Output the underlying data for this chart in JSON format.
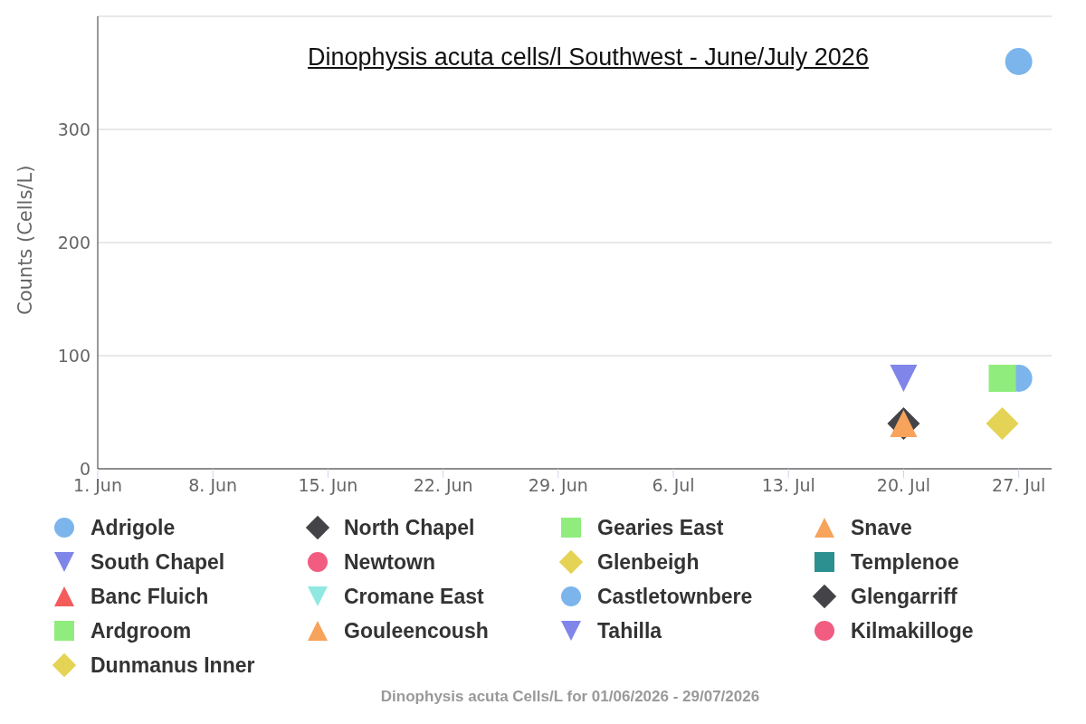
{
  "chart_data": {
    "type": "scatter",
    "title": "Dinophysis acuta cells/l Southwest - June/July 2026",
    "ylabel": "Counts (Cells/L)",
    "annotations": [
      "Dinophysis acuta Cells/L for 01/06/2026 - 29/07/2026"
    ],
    "xlim": [
      "2026-06-01",
      "2026-07-29"
    ],
    "xticks": [
      {
        "value": "2026-06-01",
        "label": "1. Jun"
      },
      {
        "value": "2026-06-08",
        "label": "8. Jun"
      },
      {
        "value": "2026-06-15",
        "label": "15. Jun"
      },
      {
        "value": "2026-06-22",
        "label": "22. Jun"
      },
      {
        "value": "2026-06-29",
        "label": "29. Jun"
      },
      {
        "value": "2026-07-06",
        "label": "6. Jul"
      },
      {
        "value": "2026-07-13",
        "label": "13. Jul"
      },
      {
        "value": "2026-07-20",
        "label": "20. Jul"
      },
      {
        "value": "2026-07-27",
        "label": "27. Jul"
      }
    ],
    "ylim": [
      0,
      400
    ],
    "yticks": [
      0,
      100,
      200,
      300
    ],
    "grid": "y",
    "legend": "bottom",
    "series": [
      {
        "name": "Adrigole",
        "color": "#7cb5ec",
        "marker": "circle",
        "x": [
          "2026-07-27"
        ],
        "values": [
          360
        ]
      },
      {
        "name": "North Chapel",
        "color": "#434348",
        "marker": "diamond",
        "x": [
          "2026-07-20"
        ],
        "values": [
          40
        ]
      },
      {
        "name": "Gearies East",
        "color": "#90ed7d",
        "marker": "square"
      },
      {
        "name": "Snave",
        "color": "#f7a35c",
        "marker": "triangle",
        "x": [
          "2026-07-20"
        ],
        "values": [
          40
        ]
      },
      {
        "name": "South Chapel",
        "color": "#8085e9",
        "marker": "triangle-down",
        "x": [
          "2026-07-20"
        ],
        "values": [
          80
        ]
      },
      {
        "name": "Newtown",
        "color": "#f15c80",
        "marker": "circle"
      },
      {
        "name": "Glenbeigh",
        "color": "#e4d354",
        "marker": "diamond",
        "x": [
          "2026-07-26"
        ],
        "values": [
          40
        ]
      },
      {
        "name": "Templenoe",
        "color": "#2b908f",
        "marker": "square"
      },
      {
        "name": "Banc Fluich",
        "color": "#f45b5b",
        "marker": "triangle"
      },
      {
        "name": "Cromane East",
        "color": "#91e8e1",
        "marker": "triangle-down"
      },
      {
        "name": "Castletownbere",
        "color": "#7cb5ec",
        "marker": "circle",
        "x": [
          "2026-07-27"
        ],
        "values": [
          80
        ]
      },
      {
        "name": "Glengarriff",
        "color": "#434348",
        "marker": "diamond"
      },
      {
        "name": "Ardgroom",
        "color": "#90ed7d",
        "marker": "square",
        "x": [
          "2026-07-26"
        ],
        "values": [
          80
        ]
      },
      {
        "name": "Gouleencoush",
        "color": "#f7a35c",
        "marker": "triangle"
      },
      {
        "name": "Tahilla",
        "color": "#8085e9",
        "marker": "triangle-down"
      },
      {
        "name": "Kilmakilloge",
        "color": "#f15c80",
        "marker": "circle"
      },
      {
        "name": "Dunmanus Inner",
        "color": "#e4d354",
        "marker": "diamond"
      }
    ]
  }
}
